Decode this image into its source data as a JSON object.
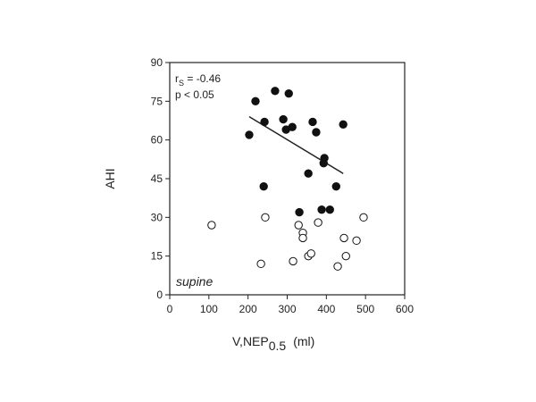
{
  "chart_data": {
    "type": "scatter",
    "ylabel": "AHI",
    "xlabel": {
      "main": "V,NEP",
      "sub": "0.5",
      "unit": "(ml)"
    },
    "xlim": [
      0,
      600
    ],
    "xticks": [
      0,
      100,
      200,
      300,
      400,
      500,
      600
    ],
    "ylim": [
      0,
      90
    ],
    "yticks": [
      0,
      15,
      30,
      45,
      60,
      75,
      90
    ],
    "series": [
      {
        "marker": "filled",
        "color": "#111111",
        "x": [
          203,
          219,
          242,
          240,
          269,
          290,
          297,
          304,
          313,
          331,
          354,
          365,
          374,
          388,
          393,
          395,
          409,
          425,
          443
        ],
        "values": [
          62,
          75,
          67,
          42,
          79,
          68,
          64,
          78,
          65,
          32,
          47,
          67,
          63,
          33,
          51,
          53,
          33,
          42,
          66
        ]
      },
      {
        "marker": "open",
        "color": "#111111",
        "x": [
          107,
          244,
          233,
          315,
          329,
          340,
          340,
          354,
          361,
          379,
          429,
          445,
          450,
          477,
          495
        ],
        "values": [
          27,
          30,
          12,
          13,
          27,
          24,
          22,
          15,
          16,
          28,
          11,
          22,
          15,
          21,
          30
        ]
      }
    ],
    "fit_line": {
      "x": [
        203,
        443
      ],
      "values": [
        69,
        47
      ]
    },
    "annotations": {
      "stat": {
        "main": "r",
        "sub": "S",
        "rest": " = -0.46"
      },
      "p": "p < 0.05",
      "condition": "supine"
    }
  }
}
